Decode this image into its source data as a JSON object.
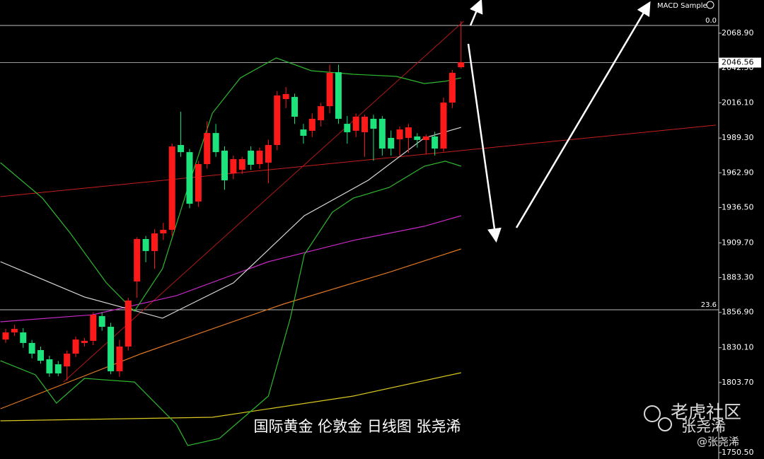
{
  "chart_data": {
    "type": "candlestick",
    "title": "MACD Sample",
    "caption": "国际黄金 伦敦金 日线图 张尧浠",
    "watermark": [
      "老虎社区",
      "张尧浠",
      "@张尧浠"
    ],
    "up_color": "#ff1a1a",
    "down_color": "#1de37c",
    "ylim": [
      1745.6,
      2094.1
    ],
    "yticks": [
      {
        "value": 2068.9,
        "label": "2068.90"
      },
      {
        "value": 2042.5,
        "label": "2042.50"
      },
      {
        "value": 2016.1,
        "label": "2016.10"
      },
      {
        "value": 1989.3,
        "label": "1989.30"
      },
      {
        "value": 1962.9,
        "label": "1962.90"
      },
      {
        "value": 1936.5,
        "label": "1936.50"
      },
      {
        "value": 1909.7,
        "label": "1909.70"
      },
      {
        "value": 1883.3,
        "label": "1883.30"
      },
      {
        "value": 1856.9,
        "label": "1856.90"
      },
      {
        "value": 1830.1,
        "label": "1830.10"
      },
      {
        "value": 1803.7,
        "label": "1803.70"
      },
      {
        "value": 1750.5,
        "label": "1750.50"
      }
    ],
    "last_price": 2046.56,
    "levels": [
      {
        "value": 2074.8,
        "label": "0.0"
      },
      {
        "value": 1858.9,
        "label": "23.6"
      }
    ],
    "ohlc": [
      [
        1836.3,
        1844.4,
        1833.7,
        1841.7
      ],
      [
        1841.7,
        1847.5,
        1839.0,
        1844.4
      ],
      [
        1841.7,
        1845.0,
        1830.0,
        1833.7
      ],
      [
        1833.7,
        1836.0,
        1822.0,
        1825.6
      ],
      [
        1828.3,
        1831.0,
        1818.0,
        1820.2
      ],
      [
        1821.3,
        1824.0,
        1808.0,
        1810.6
      ],
      [
        1817.5,
        1820.0,
        1808.5,
        1810.6
      ],
      [
        1815.9,
        1828.0,
        1805.2,
        1825.6
      ],
      [
        1825.6,
        1838.5,
        1823.0,
        1836.3
      ],
      [
        1833.7,
        1837.5,
        1831.0,
        1835.3
      ],
      [
        1835.3,
        1857.0,
        1832.0,
        1855.1
      ],
      [
        1854.1,
        1857.0,
        1843.0,
        1846.0
      ],
      [
        1846.0,
        1849.0,
        1810.0,
        1812.2
      ],
      [
        1812.2,
        1836.0,
        1808.0,
        1831.0
      ],
      [
        1831.0,
        1868.0,
        1828.0,
        1865.9
      ],
      [
        1880.4,
        1914.0,
        1868.0,
        1912.6
      ],
      [
        1912.6,
        1915.0,
        1895.0,
        1903.5
      ],
      [
        1903.5,
        1920.0,
        1890.0,
        1916.9
      ],
      [
        1916.9,
        1925.0,
        1912.0,
        1919.6
      ],
      [
        1919.6,
        1985.0,
        1915.0,
        1982.9
      ],
      [
        1984.0,
        2009.3,
        1975.0,
        1978.6
      ],
      [
        1978.6,
        1981.0,
        1936.0,
        1939.4
      ],
      [
        1941.1,
        1972.0,
        1937.0,
        1969.5
      ],
      [
        1969.5,
        2002.0,
        1966.0,
        1993.1
      ],
      [
        1993.1,
        2000.0,
        1975.0,
        1978.6
      ],
      [
        1979.7,
        1983.0,
        1950.0,
        1957.2
      ],
      [
        1962.5,
        1976.0,
        1958.0,
        1973.3
      ],
      [
        1965.2,
        1975.0,
        1962.0,
        1973.3
      ],
      [
        1979.7,
        1983.0,
        1965.0,
        1969.0
      ],
      [
        1969.5,
        1982.0,
        1966.0,
        1979.7
      ],
      [
        1970.6,
        1988.0,
        1955.0,
        1984.0
      ],
      [
        1984.0,
        2025.0,
        1980.0,
        2021.6
      ],
      [
        2018.9,
        2028.0,
        2012.0,
        2022.7
      ],
      [
        2020.5,
        2023.0,
        2000.0,
        2005.5
      ],
      [
        1995.8,
        2000.0,
        1985.0,
        1991.0
      ],
      [
        1994.8,
        2008.0,
        1990.0,
        2003.9
      ],
      [
        2002.8,
        2016.0,
        1998.0,
        2013.5
      ],
      [
        2013.5,
        2045.0,
        2008.0,
        2038.8
      ],
      [
        2039.3,
        2045.0,
        2000.0,
        2003.9
      ],
      [
        2000.1,
        2006.0,
        1985.0,
        1993.7
      ],
      [
        1994.8,
        2008.0,
        1990.0,
        2005.5
      ],
      [
        1993.7,
        2007.0,
        1975.0,
        2005.5
      ],
      [
        2003.9,
        2007.0,
        1972.0,
        1996.4
      ],
      [
        2003.9,
        2006.0,
        1976.0,
        1981.3
      ],
      [
        1989.4,
        1995.0,
        1976.0,
        1981.3
      ],
      [
        1988.3,
        1998.0,
        1976.0,
        1995.8
      ],
      [
        1989.4,
        2000.0,
        1978.0,
        1997.4
      ],
      [
        1990.5,
        1993.0,
        1982.0,
        1987.8
      ],
      [
        1987.8,
        1992.0,
        1977.0,
        1990.5
      ],
      [
        1990.5,
        1994.0,
        1976.0,
        1981.3
      ],
      [
        1981.3,
        2020.0,
        1979.0,
        2016.2
      ],
      [
        2016.2,
        2041.0,
        2012.0,
        2038.8
      ],
      [
        2043.1,
        2078.0,
        2042.0,
        2046.8
      ]
    ],
    "indicators": [
      {
        "color": "#c828c8",
        "points": [
          [
            -0.6,
            1849.8
          ],
          [
            9.9,
            1855.1
          ],
          [
            19.5,
            1869.6
          ],
          [
            30,
            1895.4
          ],
          [
            39.7,
            1911.6
          ],
          [
            47.8,
            1922.3
          ],
          [
            52,
            1930.3
          ]
        ]
      },
      {
        "color": "#e07820",
        "points": [
          [
            -0.6,
            1783.7
          ],
          [
            15.5,
            1825.6
          ],
          [
            31.7,
            1863.2
          ],
          [
            43.8,
            1887.4
          ],
          [
            52,
            1905.1
          ]
        ]
      },
      {
        "color": "#d8c820",
        "points": [
          [
            -0.6,
            1774.6
          ],
          [
            23.6,
            1777.3
          ],
          [
            39.7,
            1793.4
          ],
          [
            52,
            1811.1
          ]
        ]
      },
      {
        "color": "#d8d8d8",
        "points": [
          [
            -0.6,
            1895.4
          ],
          [
            9,
            1868.6
          ],
          [
            17.9,
            1852.5
          ],
          [
            26,
            1879.3
          ],
          [
            34.1,
            1930.3
          ],
          [
            41.4,
            1957.2
          ],
          [
            47.8,
            1989.4
          ],
          [
            52,
            1997.4
          ]
        ]
      },
      {
        "color": "#2eb82e",
        "points": [
          [
            -0.6,
            1970.6
          ],
          [
            4.2,
            1943.7
          ],
          [
            7.4,
            1916.9
          ],
          [
            11.5,
            1879.3
          ],
          [
            14.7,
            1857.8
          ],
          [
            17.9,
            1890.0
          ],
          [
            21.2,
            1959.9
          ],
          [
            23.6,
            2008.2
          ],
          [
            26.8,
            2035.0
          ],
          [
            30.9,
            2050.1
          ],
          [
            34.9,
            2040.4
          ],
          [
            39.7,
            2037.7
          ],
          [
            44.6,
            2036.1
          ],
          [
            47.8,
            2030.7
          ],
          [
            50.2,
            2032.4
          ],
          [
            52,
            2035.0
          ]
        ]
      },
      {
        "color": "#2eb82e",
        "points": [
          [
            -0.6,
            1820.2
          ],
          [
            3.4,
            1809.5
          ],
          [
            5.8,
            1788.0
          ],
          [
            9,
            1806.8
          ],
          [
            14.7,
            1804.1
          ],
          [
            19.5,
            1771.9
          ],
          [
            20.8,
            1755.8
          ],
          [
            24.4,
            1761.2
          ],
          [
            30,
            1793.4
          ],
          [
            32.5,
            1852.5
          ],
          [
            34.1,
            1900.8
          ],
          [
            37.3,
            1933.0
          ],
          [
            39.7,
            1943.7
          ],
          [
            43.8,
            1951.8
          ],
          [
            47.8,
            1967.9
          ],
          [
            50.2,
            1971.7
          ],
          [
            52,
            1967.9
          ]
        ]
      }
    ],
    "trendlines": [
      {
        "color": "#c81e1e",
        "points": [
          [
            -0.6,
            1944.8
          ],
          [
            81.1,
            1999.1
          ]
        ]
      },
      {
        "color": "#b01818",
        "points": [
          [
            6.6,
            1804.1
          ],
          [
            52.3,
            2078.0
          ]
        ]
      }
    ]
  }
}
